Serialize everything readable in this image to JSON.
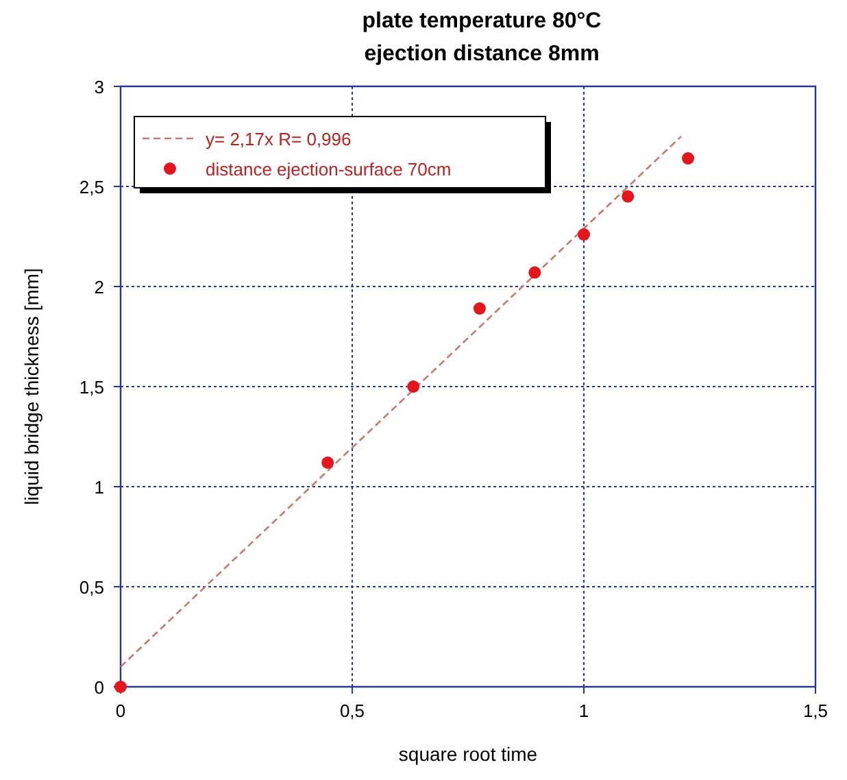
{
  "chart_data": {
    "type": "scatter",
    "title": "plate temperature 80°C\nejection distance 8mm",
    "xlabel": "square root time",
    "ylabel": "liquid bridge thickness  [mm]",
    "xlim": [
      0,
      1.5
    ],
    "xticks": [
      0,
      {
        "value": 0.5,
        "label": "0,5"
      },
      1,
      {
        "value": 1.5,
        "label": "1,5"
      }
    ],
    "ylim": [
      0,
      3
    ],
    "yticks": [
      0,
      {
        "value": 0.5,
        "label": "0,5"
      },
      1,
      {
        "value": 1.5,
        "label": "1,5"
      },
      2,
      {
        "value": 2.5,
        "label": "2,5"
      },
      3
    ],
    "grid": true,
    "legend": "top left",
    "marker": "circle",
    "series": [
      {
        "name": "y= 2,17x  R= 0,996",
        "type": "line",
        "line_style": "dashed",
        "marker": "none",
        "color": "#c87870",
        "x": [
          0,
          1.21
        ],
        "values": [
          0.1,
          2.75
        ]
      },
      {
        "name": "distance ejection-surface 70cm",
        "color": "#e8141c",
        "x": [
          0,
          0.447,
          0.632,
          0.775,
          0.894,
          1.0,
          1.095,
          1.225
        ],
        "values": [
          0,
          1.12,
          1.5,
          1.89,
          2.07,
          2.26,
          2.45,
          2.64
        ]
      }
    ]
  }
}
